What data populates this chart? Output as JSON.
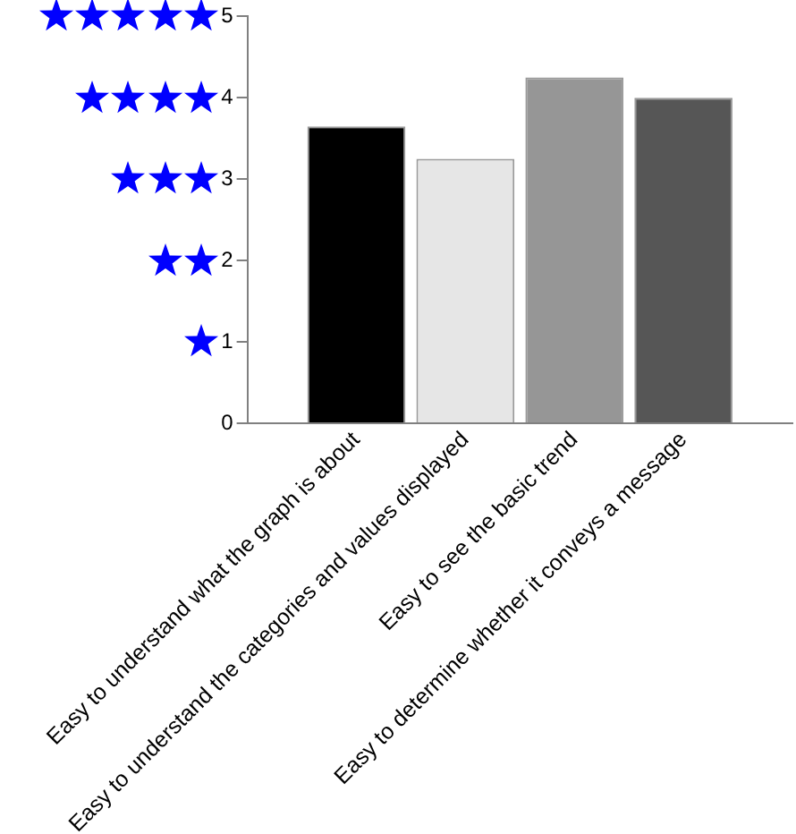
{
  "chart_data": {
    "type": "bar",
    "categories": [
      "Easy to understand what the graph is about",
      "Easy to understand the categories and values displayed",
      "Easy to see the basic trend",
      "Easy to determine whether it conveys a message"
    ],
    "values": [
      3.65,
      3.25,
      4.25,
      4.0
    ],
    "colors": [
      "#000000",
      "#e6e6e6",
      "#969696",
      "#565656"
    ],
    "ylim": [
      0,
      5
    ],
    "yticks": [
      0,
      1,
      2,
      3,
      4,
      5
    ]
  }
}
